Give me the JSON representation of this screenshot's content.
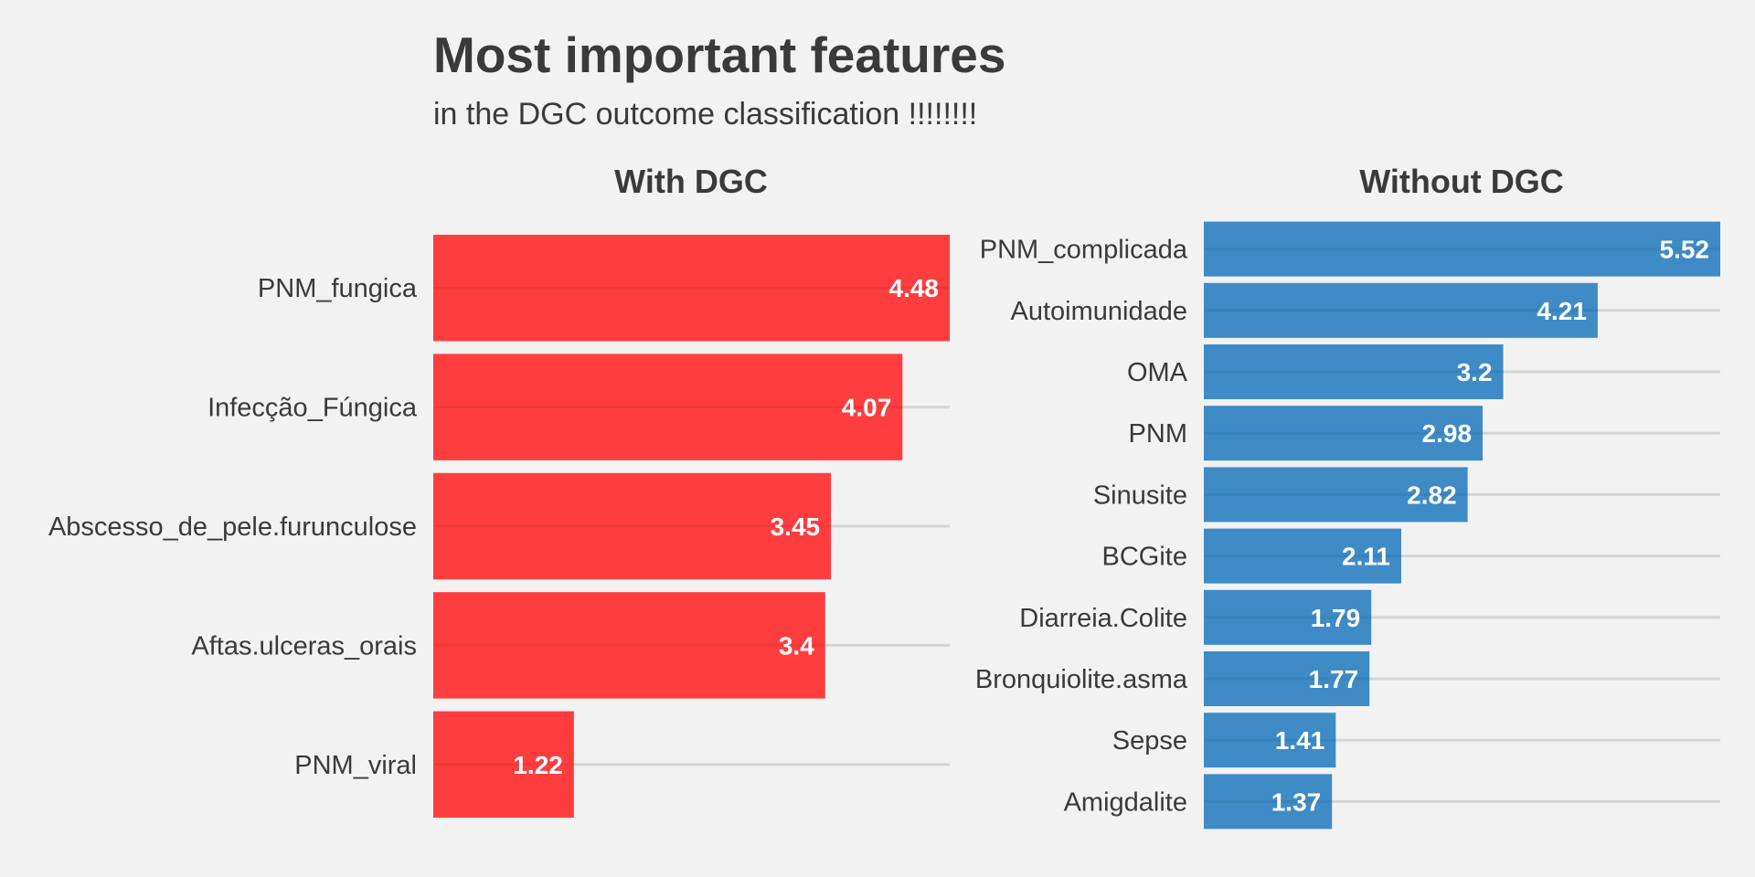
{
  "title": "Most important features",
  "subtitle": "in the DGC outcome classification !!!!!!!!",
  "colors": {
    "with_dgc": "#fe3d3f",
    "without_dgc": "#3e8bc6",
    "background": "#f2f2f2",
    "gridline": "#d4d4d4"
  },
  "chart_data": [
    {
      "type": "bar",
      "orientation": "horizontal",
      "title": "With DGC",
      "categories": [
        "PNM_fungica",
        "Infecção_Fúngica",
        "Abscesso_de_pele.furunculose",
        "Aftas.ulceras_orais",
        "PNM_viral"
      ],
      "values": [
        4.48,
        4.07,
        3.45,
        3.4,
        1.22
      ],
      "value_labels": [
        "4.48",
        "4.07",
        "3.45",
        "3.4",
        "1.22"
      ],
      "xlim": [
        0,
        4.48
      ],
      "grid": true,
      "color": "#fe3d3f"
    },
    {
      "type": "bar",
      "orientation": "horizontal",
      "title": "Without DGC",
      "categories": [
        "PNM_complicada",
        "Autoimunidade",
        "OMA",
        "PNM",
        "Sinusite",
        "BCGite",
        "Diarreia.Colite",
        "Bronquiolite.asma",
        "Sepse",
        "Amigdalite"
      ],
      "values": [
        5.52,
        4.21,
        3.2,
        2.98,
        2.82,
        2.11,
        1.79,
        1.77,
        1.41,
        1.37
      ],
      "value_labels": [
        "5.52",
        "4.21",
        "3.2",
        "2.98",
        "2.82",
        "2.11",
        "1.79",
        "1.77",
        "1.41",
        "1.37"
      ],
      "xlim": [
        0,
        5.52
      ],
      "grid": true,
      "color": "#3e8bc6"
    }
  ]
}
